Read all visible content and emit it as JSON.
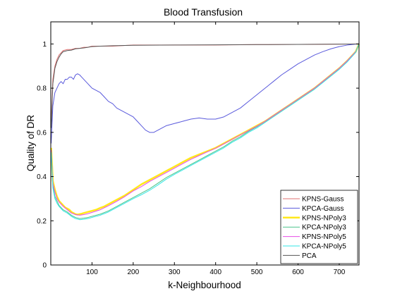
{
  "chart_data": {
    "type": "line",
    "title": "Blood Transfusion",
    "xlabel": "k-Neighbourhood",
    "ylabel": "Quality of DR",
    "xlim": [
      0,
      748
    ],
    "ylim": [
      0,
      1.1
    ],
    "xticks": [
      100,
      200,
      300,
      400,
      500,
      600,
      700
    ],
    "yticks": [
      0,
      0.2,
      0.4,
      0.6,
      0.8,
      1
    ],
    "ytick_labels": [
      "0",
      "0.2",
      "0.4",
      "0.6",
      "0.8",
      "1"
    ],
    "legend_position": "bottom-right",
    "series": [
      {
        "name": "KPNS-Gauss",
        "color": "#e07070",
        "width": 1,
        "x": [
          1,
          5,
          10,
          15,
          20,
          25,
          30,
          40,
          50,
          60,
          70,
          80,
          90,
          100,
          120,
          150,
          200,
          300,
          400,
          500,
          600,
          700,
          748
        ],
        "y": [
          0.65,
          0.84,
          0.9,
          0.93,
          0.95,
          0.96,
          0.97,
          0.975,
          0.975,
          0.98,
          0.98,
          0.985,
          0.985,
          0.99,
          0.99,
          0.99,
          0.995,
          0.995,
          0.995,
          0.997,
          0.998,
          0.999,
          1.0
        ]
      },
      {
        "name": "KPCA-Gauss",
        "color": "#5a5adc",
        "width": 1,
        "x": [
          1,
          5,
          10,
          15,
          20,
          25,
          30,
          35,
          40,
          45,
          50,
          55,
          60,
          65,
          70,
          75,
          80,
          90,
          100,
          110,
          120,
          130,
          140,
          150,
          160,
          170,
          180,
          190,
          200,
          210,
          220,
          230,
          240,
          250,
          260,
          270,
          280,
          300,
          320,
          340,
          360,
          380,
          400,
          420,
          440,
          460,
          480,
          500,
          520,
          540,
          560,
          580,
          600,
          620,
          640,
          660,
          680,
          700,
          720,
          740,
          748
        ],
        "y": [
          0.55,
          0.72,
          0.78,
          0.8,
          0.82,
          0.83,
          0.82,
          0.84,
          0.84,
          0.85,
          0.85,
          0.84,
          0.86,
          0.865,
          0.86,
          0.85,
          0.84,
          0.82,
          0.8,
          0.79,
          0.78,
          0.76,
          0.74,
          0.73,
          0.71,
          0.7,
          0.69,
          0.68,
          0.67,
          0.65,
          0.63,
          0.61,
          0.6,
          0.6,
          0.61,
          0.62,
          0.63,
          0.64,
          0.65,
          0.66,
          0.665,
          0.66,
          0.66,
          0.67,
          0.69,
          0.71,
          0.74,
          0.77,
          0.8,
          0.83,
          0.86,
          0.885,
          0.91,
          0.93,
          0.95,
          0.965,
          0.978,
          0.988,
          0.995,
          0.999,
          1.0
        ]
      },
      {
        "name": "KPNS-NPoly3",
        "color": "#ffe81a",
        "width": 2.5,
        "x": [
          1,
          5,
          10,
          15,
          20,
          25,
          30,
          35,
          40,
          45,
          50,
          55,
          60,
          65,
          70,
          75,
          80,
          90,
          100,
          110,
          120,
          130,
          140,
          150,
          160,
          170,
          180,
          200,
          220,
          240,
          260,
          280,
          300,
          320,
          340,
          360,
          380,
          400,
          420,
          440,
          460,
          480,
          500,
          520,
          540,
          560,
          580,
          600,
          620,
          640,
          660,
          680,
          700,
          720,
          740,
          748
        ],
        "y": [
          0.53,
          0.38,
          0.34,
          0.31,
          0.29,
          0.28,
          0.27,
          0.26,
          0.255,
          0.25,
          0.24,
          0.235,
          0.23,
          0.228,
          0.23,
          0.232,
          0.235,
          0.24,
          0.245,
          0.25,
          0.258,
          0.265,
          0.275,
          0.285,
          0.295,
          0.305,
          0.315,
          0.34,
          0.365,
          0.385,
          0.405,
          0.425,
          0.445,
          0.465,
          0.485,
          0.5,
          0.515,
          0.53,
          0.55,
          0.57,
          0.59,
          0.61,
          0.63,
          0.65,
          0.675,
          0.7,
          0.725,
          0.75,
          0.775,
          0.8,
          0.83,
          0.86,
          0.89,
          0.925,
          0.965,
          1.0
        ]
      },
      {
        "name": "KPCA-NPoly3",
        "color": "#4ac48a",
        "width": 1,
        "x": [
          1,
          5,
          10,
          15,
          20,
          25,
          30,
          40,
          50,
          60,
          70,
          80,
          90,
          100,
          120,
          140,
          160,
          180,
          200,
          220,
          240,
          260,
          280,
          300,
          320,
          340,
          360,
          380,
          400,
          420,
          440,
          460,
          480,
          500,
          520,
          540,
          560,
          580,
          600,
          620,
          640,
          660,
          680,
          700,
          720,
          740,
          748
        ],
        "y": [
          0.52,
          0.36,
          0.31,
          0.29,
          0.27,
          0.26,
          0.25,
          0.24,
          0.225,
          0.215,
          0.21,
          0.212,
          0.215,
          0.22,
          0.23,
          0.245,
          0.265,
          0.285,
          0.305,
          0.325,
          0.345,
          0.37,
          0.395,
          0.415,
          0.435,
          0.455,
          0.475,
          0.495,
          0.515,
          0.535,
          0.56,
          0.58,
          0.605,
          0.625,
          0.65,
          0.675,
          0.7,
          0.725,
          0.75,
          0.775,
          0.8,
          0.83,
          0.86,
          0.89,
          0.925,
          0.965,
          1.0
        ]
      },
      {
        "name": "KPNS-NPoly5",
        "color": "#e64ce6",
        "width": 1,
        "x": [
          1,
          5,
          10,
          15,
          20,
          25,
          30,
          40,
          50,
          60,
          70,
          80,
          90,
          100,
          120,
          140,
          160,
          180,
          200,
          220,
          240,
          260,
          280,
          300,
          320,
          340,
          360,
          380,
          400,
          420,
          440,
          460,
          480,
          500,
          520,
          540,
          560,
          580,
          600,
          620,
          640,
          660,
          680,
          700,
          720,
          740,
          748
        ],
        "y": [
          0.52,
          0.37,
          0.33,
          0.3,
          0.285,
          0.275,
          0.265,
          0.25,
          0.235,
          0.228,
          0.225,
          0.228,
          0.232,
          0.238,
          0.25,
          0.268,
          0.288,
          0.31,
          0.335,
          0.355,
          0.378,
          0.398,
          0.418,
          0.438,
          0.458,
          0.478,
          0.495,
          0.512,
          0.528,
          0.548,
          0.568,
          0.588,
          0.608,
          0.628,
          0.65,
          0.675,
          0.7,
          0.725,
          0.75,
          0.775,
          0.8,
          0.83,
          0.86,
          0.89,
          0.925,
          0.965,
          1.0
        ]
      },
      {
        "name": "KPCA-NPoly5",
        "color": "#33e6e6",
        "width": 1,
        "x": [
          1,
          5,
          10,
          15,
          20,
          25,
          30,
          40,
          50,
          60,
          70,
          80,
          90,
          100,
          120,
          140,
          160,
          180,
          200,
          220,
          240,
          260,
          280,
          300,
          320,
          340,
          360,
          380,
          400,
          420,
          440,
          460,
          480,
          500,
          520,
          540,
          560,
          580,
          600,
          620,
          640,
          660,
          680,
          700,
          720,
          740,
          748
        ],
        "y": [
          0.51,
          0.35,
          0.3,
          0.28,
          0.265,
          0.255,
          0.245,
          0.235,
          0.22,
          0.21,
          0.205,
          0.207,
          0.21,
          0.215,
          0.225,
          0.24,
          0.26,
          0.28,
          0.3,
          0.318,
          0.338,
          0.362,
          0.388,
          0.41,
          0.43,
          0.45,
          0.47,
          0.49,
          0.51,
          0.53,
          0.555,
          0.575,
          0.6,
          0.62,
          0.645,
          0.67,
          0.695,
          0.72,
          0.745,
          0.77,
          0.795,
          0.825,
          0.855,
          0.885,
          0.92,
          0.962,
          1.0
        ]
      },
      {
        "name": "PCA",
        "color": "#555555",
        "width": 1,
        "x": [
          1,
          5,
          10,
          15,
          20,
          25,
          30,
          40,
          50,
          60,
          70,
          80,
          90,
          100,
          120,
          150,
          200,
          300,
          400,
          500,
          600,
          700,
          748
        ],
        "y": [
          0.62,
          0.82,
          0.89,
          0.92,
          0.94,
          0.955,
          0.965,
          0.97,
          0.972,
          0.978,
          0.98,
          0.982,
          0.985,
          0.988,
          0.99,
          0.992,
          0.994,
          0.995,
          0.996,
          0.997,
          0.998,
          0.999,
          1.0
        ]
      }
    ]
  }
}
